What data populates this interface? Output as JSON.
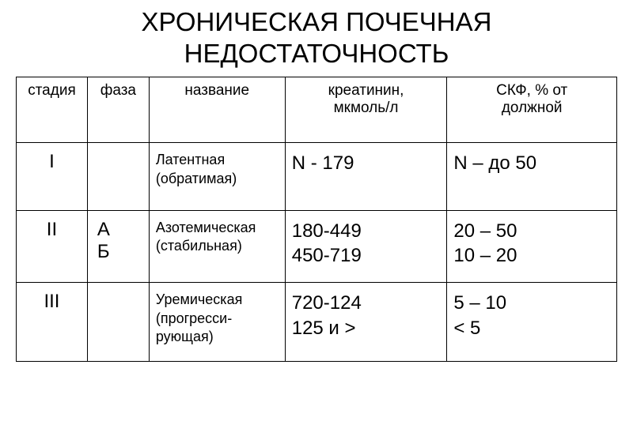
{
  "title_line1": "ХРОНИЧЕСКАЯ ПОЧЕЧНАЯ",
  "title_line2": "НЕДОСТАТОЧНОСТЬ",
  "headers": {
    "stage": "стадия",
    "phase": "фаза",
    "name": "название",
    "creatinine_line1": "креатинин,",
    "creatinine_line2": "мкмоль/л",
    "gfr_line1": "СКФ, % от",
    "gfr_line2": "должной"
  },
  "rows": [
    {
      "stage": "I",
      "phase": "",
      "name_line1": "Латентная",
      "name_line2": "(обратимая)",
      "creat_line1": "N - 179",
      "creat_line2": "",
      "gfr_line1": "N – до 50",
      "gfr_line2": ""
    },
    {
      "stage": "II",
      "phase_line1": "А",
      "phase_line2": "Б",
      "name_line1": "Азотемическая",
      "name_line2": "(стабильная)",
      "creat_line1": "180-449",
      "creat_line2": "450-719",
      "gfr_line1": "20 – 50",
      "gfr_line2": "10 – 20"
    },
    {
      "stage": "III",
      "phase": "",
      "name_line1": "Уремическая",
      "name_line2": "(прогресси-",
      "name_line3": "рующая)",
      "creat_line1": "720-124",
      "creat_line2": "125 и >",
      "gfr_line1": "5 – 10",
      "gfr_line2": "< 5"
    }
  ],
  "colors": {
    "background": "#ffffff",
    "text": "#000000",
    "border": "#000000"
  }
}
